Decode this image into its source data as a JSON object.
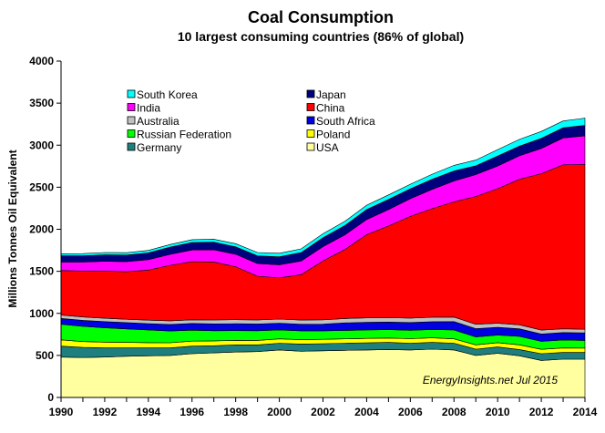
{
  "chart_data": {
    "type": "area",
    "stacked": true,
    "title": "Coal Consumption",
    "subtitle": "10 largest consuming countries (86% of global)",
    "ylabel": "Millions Tonnes Oil Equivalent",
    "xlabel": "",
    "ylim": [
      0,
      4000
    ],
    "yticks": [
      "0",
      "500",
      "1000",
      "1500",
      "2000",
      "2500",
      "3000",
      "3500",
      "4000"
    ],
    "xticks": [
      "1990",
      "1992",
      "1994",
      "1996",
      "1998",
      "2000",
      "2002",
      "2004",
      "2006",
      "2008",
      "2010",
      "2012",
      "2014"
    ],
    "grid": false,
    "legend_position": "top-left",
    "credit": "EnergyInsights.net Jul 2015",
    "x": [
      1990,
      1991,
      1992,
      1993,
      1994,
      1995,
      1996,
      1997,
      1998,
      1999,
      2000,
      2001,
      2002,
      2003,
      2004,
      2005,
      2006,
      2007,
      2008,
      2009,
      2010,
      2011,
      2012,
      2013,
      2014
    ],
    "series": [
      {
        "name": "USA",
        "color": "#FFFFA0",
        "values": [
          480,
          475,
          480,
          490,
          495,
          500,
          520,
          530,
          540,
          545,
          565,
          550,
          555,
          560,
          565,
          570,
          565,
          575,
          565,
          500,
          525,
          495,
          440,
          455,
          455
        ]
      },
      {
        "name": "Germany",
        "color": "#1F7F7F",
        "values": [
          130,
          120,
          110,
          100,
          95,
          90,
          90,
          85,
          85,
          80,
          80,
          85,
          85,
          85,
          85,
          85,
          80,
          80,
          80,
          75,
          75,
          75,
          80,
          80,
          80
        ]
      },
      {
        "name": "Poland",
        "color": "#FFFF00",
        "values": [
          75,
          70,
          68,
          65,
          62,
          60,
          60,
          58,
          55,
          54,
          52,
          52,
          52,
          52,
          52,
          52,
          54,
          54,
          52,
          50,
          52,
          56,
          52,
          54,
          52
        ]
      },
      {
        "name": "Russian Federation",
        "color": "#00FF00",
        "values": [
          185,
          180,
          170,
          160,
          150,
          140,
          130,
          120,
          115,
          115,
          105,
          105,
          100,
          100,
          100,
          100,
          100,
          100,
          105,
          95,
          90,
          100,
          95,
          95,
          90
        ]
      },
      {
        "name": "South Africa",
        "color": "#0000E0",
        "values": [
          70,
          72,
          74,
          75,
          75,
          78,
          80,
          82,
          82,
          80,
          82,
          78,
          80,
          90,
          92,
          90,
          92,
          92,
          100,
          98,
          92,
          90,
          88,
          88,
          90
        ]
      },
      {
        "name": "Australia",
        "color": "#C0C0C0",
        "values": [
          40,
          40,
          40,
          40,
          42,
          44,
          44,
          46,
          48,
          48,
          48,
          50,
          52,
          52,
          52,
          52,
          52,
          54,
          54,
          52,
          48,
          48,
          46,
          44,
          44
        ]
      },
      {
        "name": "China",
        "color": "#FF0000",
        "values": [
          530,
          545,
          560,
          565,
          595,
          660,
          690,
          690,
          630,
          520,
          490,
          540,
          700,
          820,
          990,
          1090,
          1210,
          1290,
          1370,
          1520,
          1600,
          1730,
          1860,
          1950,
          1960
        ]
      },
      {
        "name": "India",
        "color": "#FF00FF",
        "values": [
          100,
          108,
          118,
          120,
          125,
          130,
          140,
          145,
          148,
          150,
          155,
          162,
          170,
          175,
          180,
          195,
          210,
          230,
          248,
          260,
          270,
          280,
          300,
          320,
          340
        ]
      },
      {
        "name": "Japan",
        "color": "#00007F",
        "values": [
          75,
          75,
          77,
          78,
          80,
          85,
          88,
          90,
          88,
          92,
          96,
          100,
          105,
          110,
          118,
          120,
          118,
          120,
          120,
          105,
          120,
          115,
          120,
          120,
          125
        ]
      },
      {
        "name": "South Korea",
        "color": "#00FFFF",
        "values": [
          25,
          26,
          27,
          28,
          30,
          32,
          34,
          36,
          38,
          40,
          42,
          45,
          48,
          50,
          52,
          55,
          55,
          60,
          66,
          68,
          75,
          80,
          82,
          82,
          85
        ]
      }
    ],
    "legend_layout": [
      [
        "South Korea",
        "Japan"
      ],
      [
        "India",
        "China"
      ],
      [
        "Australia",
        "South Africa"
      ],
      [
        "Russian Federation",
        "Poland"
      ],
      [
        "Germany",
        "USA"
      ]
    ]
  }
}
